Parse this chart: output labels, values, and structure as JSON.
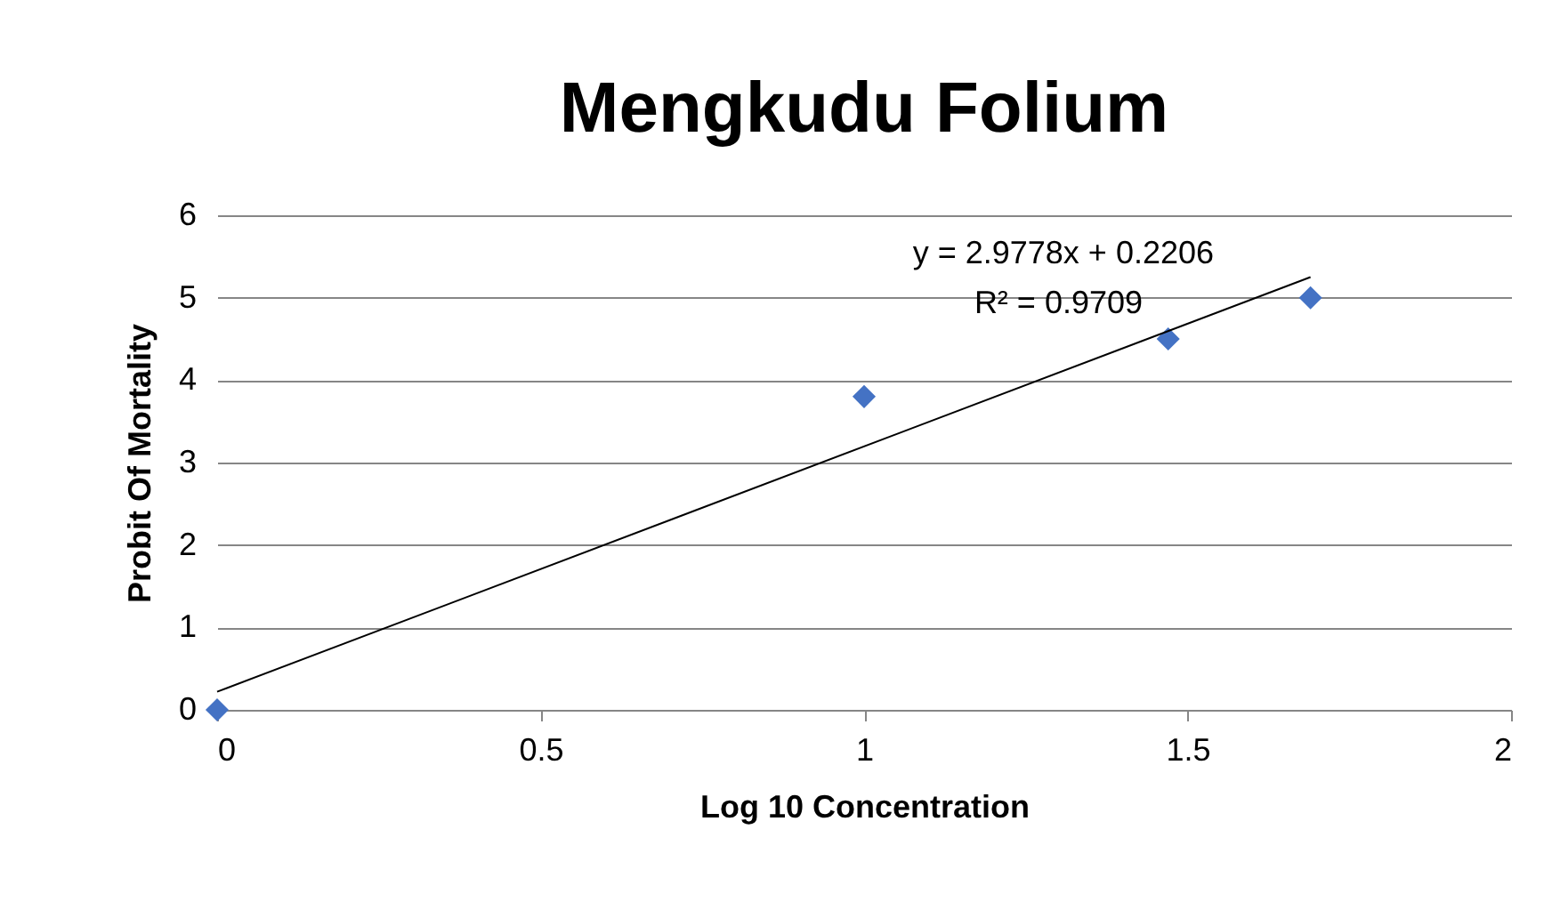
{
  "chart_data": {
    "type": "scatter",
    "title": "Mengkudu Folium",
    "xlabel": "Log 10 Concentration",
    "ylabel": "Probit Of Mortality",
    "x": [
      0,
      1,
      1.47,
      1.69
    ],
    "series": [
      {
        "color": "#4472c4",
        "values": [
          0,
          3.8,
          4.5,
          5.0
        ]
      },
      {
        "type": "line",
        "marker": "none",
        "color": "#000000",
        "x": [
          0,
          1.69
        ],
        "values": [
          0.22,
          5.25
        ]
      }
    ],
    "annotations": [
      "y = 2.9778x + 0.2206",
      "R² = 0.9709"
    ],
    "xlim": [
      0,
      2
    ],
    "xticks": [
      0,
      0.5,
      1,
      1.5,
      2
    ],
    "ylim": [
      0,
      6
    ],
    "yticks": [
      0,
      1,
      2,
      3,
      4,
      5,
      6
    ],
    "grid": "y",
    "marker": "diamond"
  }
}
